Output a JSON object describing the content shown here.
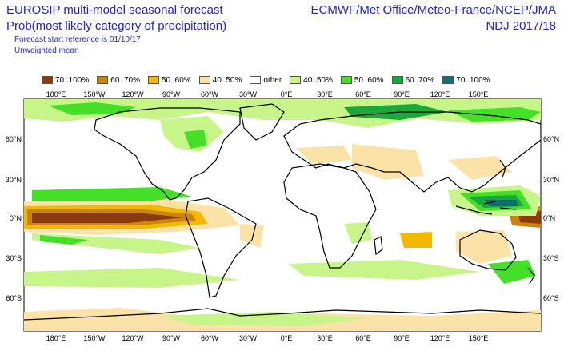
{
  "header": {
    "title_line1": "EUROSIP multi-model seasonal forecast",
    "title_line2": "Prob(most likely category of precipitation)",
    "forecast_ref": "Forecast start reference is 01/10/17",
    "weighting": "Unweighted mean",
    "centres": "ECMWF/Met Office/Meteo-France/NCEP/JMA",
    "season": "NDJ 2017/18"
  },
  "legend": [
    {
      "label": "70..100%",
      "color": "#8b3a0e"
    },
    {
      "label": "60..70%",
      "color": "#c8860a"
    },
    {
      "label": "50..60%",
      "color": "#f5b800"
    },
    {
      "label": "40..50%",
      "color": "#fbe3a8"
    },
    {
      "label": "other",
      "color": "#ffffff"
    },
    {
      "label": "40..50%",
      "color": "#c8f58a"
    },
    {
      "label": "50..60%",
      "color": "#44e028"
    },
    {
      "label": "60..70%",
      "color": "#1aa83a"
    },
    {
      "label": "70..100%",
      "color": "#0f6e6e"
    }
  ],
  "axes": {
    "lon_labels": [
      "180°E",
      "150°W",
      "120°W",
      "90°W",
      "60°W",
      "30°W",
      "0°E",
      "30°E",
      "60°E",
      "90°E",
      "120°E",
      "150°E"
    ],
    "lat_labels": [
      "60°N",
      "30°N",
      "0°N",
      "30°S",
      "60°S"
    ]
  }
}
